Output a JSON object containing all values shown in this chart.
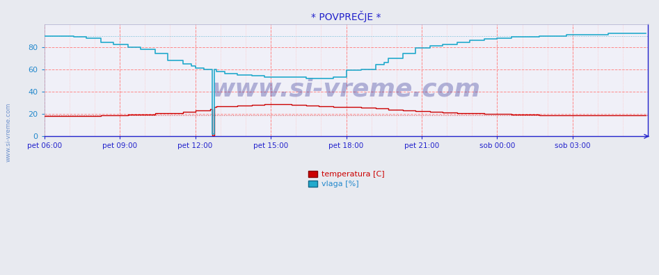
{
  "title": "* POVPREČJE *",
  "bg_color": "#e8eaf0",
  "plot_bg_color": "#f0f0f8",
  "grid_color_major": "#ffaaaa",
  "grid_color_minor": "#ffcccc",
  "temp_color": "#cc0000",
  "vlaga_color": "#22aacc",
  "axis_color": "#2222cc",
  "tick_color": "#2222cc",
  "xticklabels": [
    "pet 06:00",
    "pet 09:00",
    "pet 12:00",
    "pet 15:00",
    "pet 18:00",
    "pet 21:00",
    "sob 00:00",
    "sob 03:00"
  ],
  "yticks": [
    0,
    20,
    40,
    60,
    80
  ],
  "ylim": [
    0,
    100
  ],
  "xlim": [
    0,
    288
  ],
  "watermark": "www.si-vreme.com",
  "legend": [
    "temperatura [C]",
    "vlaga [%]"
  ],
  "side_text": "www.si-vreme.com",
  "xtick_positions": [
    0,
    36,
    72,
    108,
    144,
    180,
    216,
    252
  ]
}
